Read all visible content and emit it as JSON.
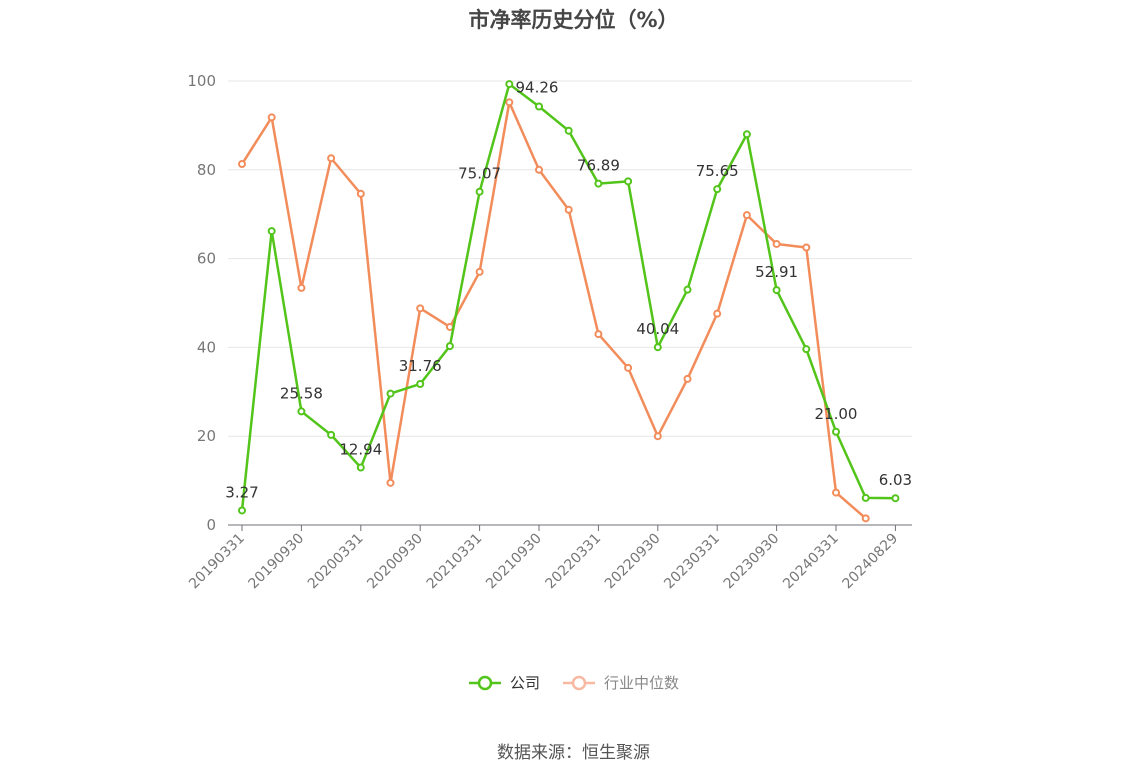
{
  "title": "市净率历史分位（%）",
  "source": "数据来源：恒生聚源",
  "chart_data": {
    "type": "line",
    "y_ticks": [
      "0",
      "20",
      "40",
      "60",
      "80",
      "100"
    ],
    "ylim": [
      0,
      100
    ],
    "grid": true,
    "legend_position": "bottom",
    "x": [
      "20190331",
      "20190630",
      "20190930",
      "20191231",
      "20200331",
      "20200630",
      "20200930",
      "20201231",
      "20210331",
      "20210630",
      "20210930",
      "20211231",
      "20220331",
      "20220630",
      "20220930",
      "20221231",
      "20230331",
      "20230630",
      "20230930",
      "20231231",
      "20240331",
      "20240630",
      "20240829"
    ],
    "x_tick_labels": [
      "20190331",
      "20190930",
      "20200331",
      "20200930",
      "20210331",
      "20210930",
      "20220331",
      "20220930",
      "20230331",
      "20230930",
      "20240331",
      "20240829"
    ],
    "series": [
      {
        "name": "公司",
        "color": "#52c41a",
        "values": [
          3.27,
          66.2,
          25.58,
          20.3,
          12.94,
          29.6,
          31.76,
          40.3,
          75.07,
          99.3,
          94.26,
          88.8,
          76.89,
          77.4,
          40.04,
          53.0,
          75.65,
          88.0,
          52.91,
          39.6,
          21.0,
          6.1,
          6.03
        ],
        "labels": {
          "0": "3.27",
          "2": "25.58",
          "4": "12.94",
          "6": "31.76",
          "8": "75.07",
          "10": "94.26",
          "12": "76.89",
          "14": "40.04",
          "16": "75.65",
          "18": "52.91",
          "20": "21.00",
          "22": "6.03"
        }
      },
      {
        "name": "行业中位数",
        "color": "#f28c5a",
        "values": [
          81.3,
          91.8,
          53.4,
          82.6,
          74.6,
          9.5,
          48.8,
          44.6,
          57.0,
          95.2,
          80.0,
          71.0,
          43.0,
          35.4,
          20.0,
          32.9,
          47.6,
          69.8,
          63.3,
          62.5,
          7.3,
          1.5,
          null
        ]
      }
    ]
  }
}
